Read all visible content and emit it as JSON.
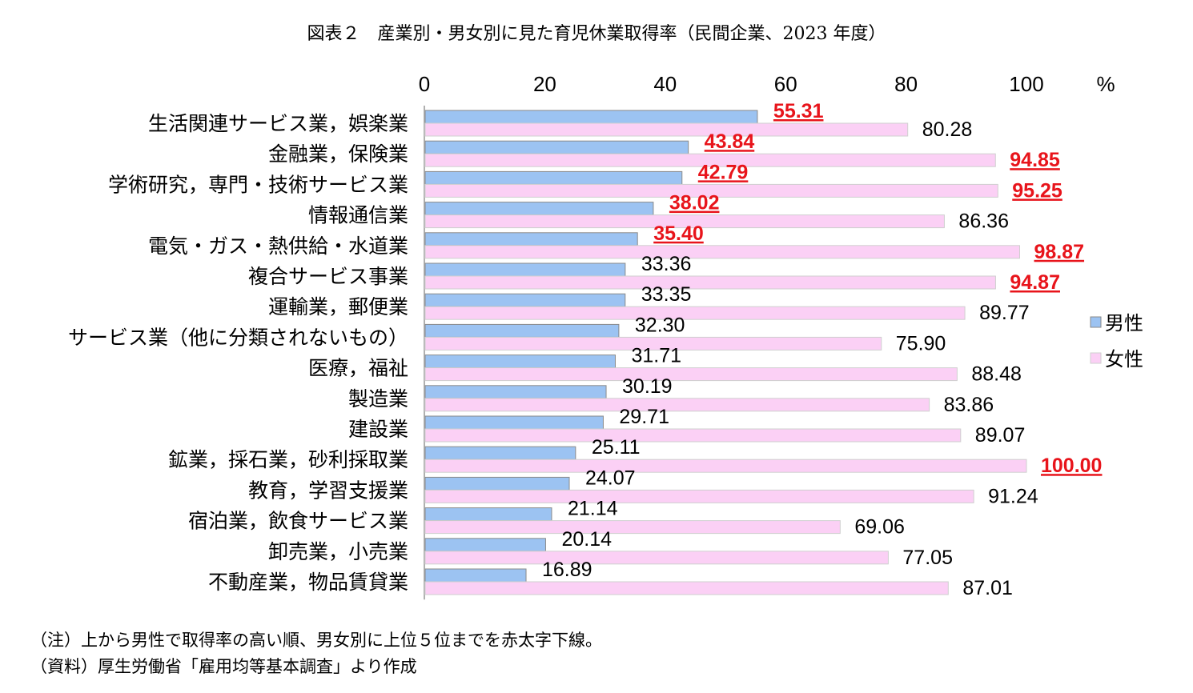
{
  "title": "図表２　産業別・男女別に見た育児休業取得率（民間企業、2023 年度）",
  "notes": [
    "（注）上から男性で取得率の高い順、男女別に上位５位までを赤太字下線。",
    "（資料）厚生労働省「雇用均等基本調査」より作成"
  ],
  "colors": {
    "male": "#9cc3f2",
    "female": "#fbd0f5",
    "highlight": "#e8141b"
  },
  "chart_data": {
    "type": "bar",
    "orientation": "horizontal",
    "title": "図表２　産業別・男女別に見た育児休業取得率（民間企業、2023 年度）",
    "unit": "%",
    "xlim": [
      0,
      100
    ],
    "ticks": [
      "0",
      "20",
      "40",
      "60",
      "80",
      "100"
    ],
    "legend": [
      "男性",
      "女性"
    ],
    "legend_position": "right",
    "categories": [
      "生活関連サービス業，娯楽業",
      "金融業，保険業",
      "学術研究，専門・技術サービス業",
      "情報通信業",
      "電気・ガス・熱供給・水道業",
      "複合サービス事業",
      "運輸業，郵便業",
      "サービス業（他に分類されないもの）",
      "医療，福祉",
      "製造業",
      "建設業",
      "鉱業，採石業，砂利採取業",
      "教育，学習支援業",
      "宿泊業，飲食サービス業",
      "卸売業，小売業",
      "不動産業，物品賃貸業"
    ],
    "series": [
      {
        "name": "男性",
        "values": [
          55.31,
          43.84,
          42.79,
          38.02,
          35.4,
          33.36,
          33.35,
          32.3,
          31.71,
          30.19,
          29.71,
          25.11,
          24.07,
          21.14,
          20.14,
          16.89
        ],
        "labels": [
          "55.31",
          "43.84",
          "42.79",
          "38.02",
          "35.40",
          "33.36",
          "33.35",
          "32.30",
          "31.71",
          "30.19",
          "29.71",
          "25.11",
          "24.07",
          "21.14",
          "20.14",
          "16.89"
        ],
        "highlight": [
          true,
          true,
          true,
          true,
          true,
          false,
          false,
          false,
          false,
          false,
          false,
          false,
          false,
          false,
          false,
          false
        ]
      },
      {
        "name": "女性",
        "values": [
          80.28,
          94.85,
          95.25,
          86.36,
          98.87,
          94.87,
          89.77,
          75.9,
          88.48,
          83.86,
          89.07,
          100.0,
          91.24,
          69.06,
          77.05,
          87.01
        ],
        "labels": [
          "80.28",
          "94.85",
          "95.25",
          "86.36",
          "98.87",
          "94.87",
          "89.77",
          "75.90",
          "88.48",
          "83.86",
          "89.07",
          "100.00",
          "91.24",
          "69.06",
          "77.05",
          "87.01"
        ],
        "highlight": [
          false,
          true,
          true,
          false,
          true,
          true,
          false,
          false,
          false,
          false,
          false,
          true,
          false,
          false,
          false,
          false
        ]
      }
    ]
  }
}
